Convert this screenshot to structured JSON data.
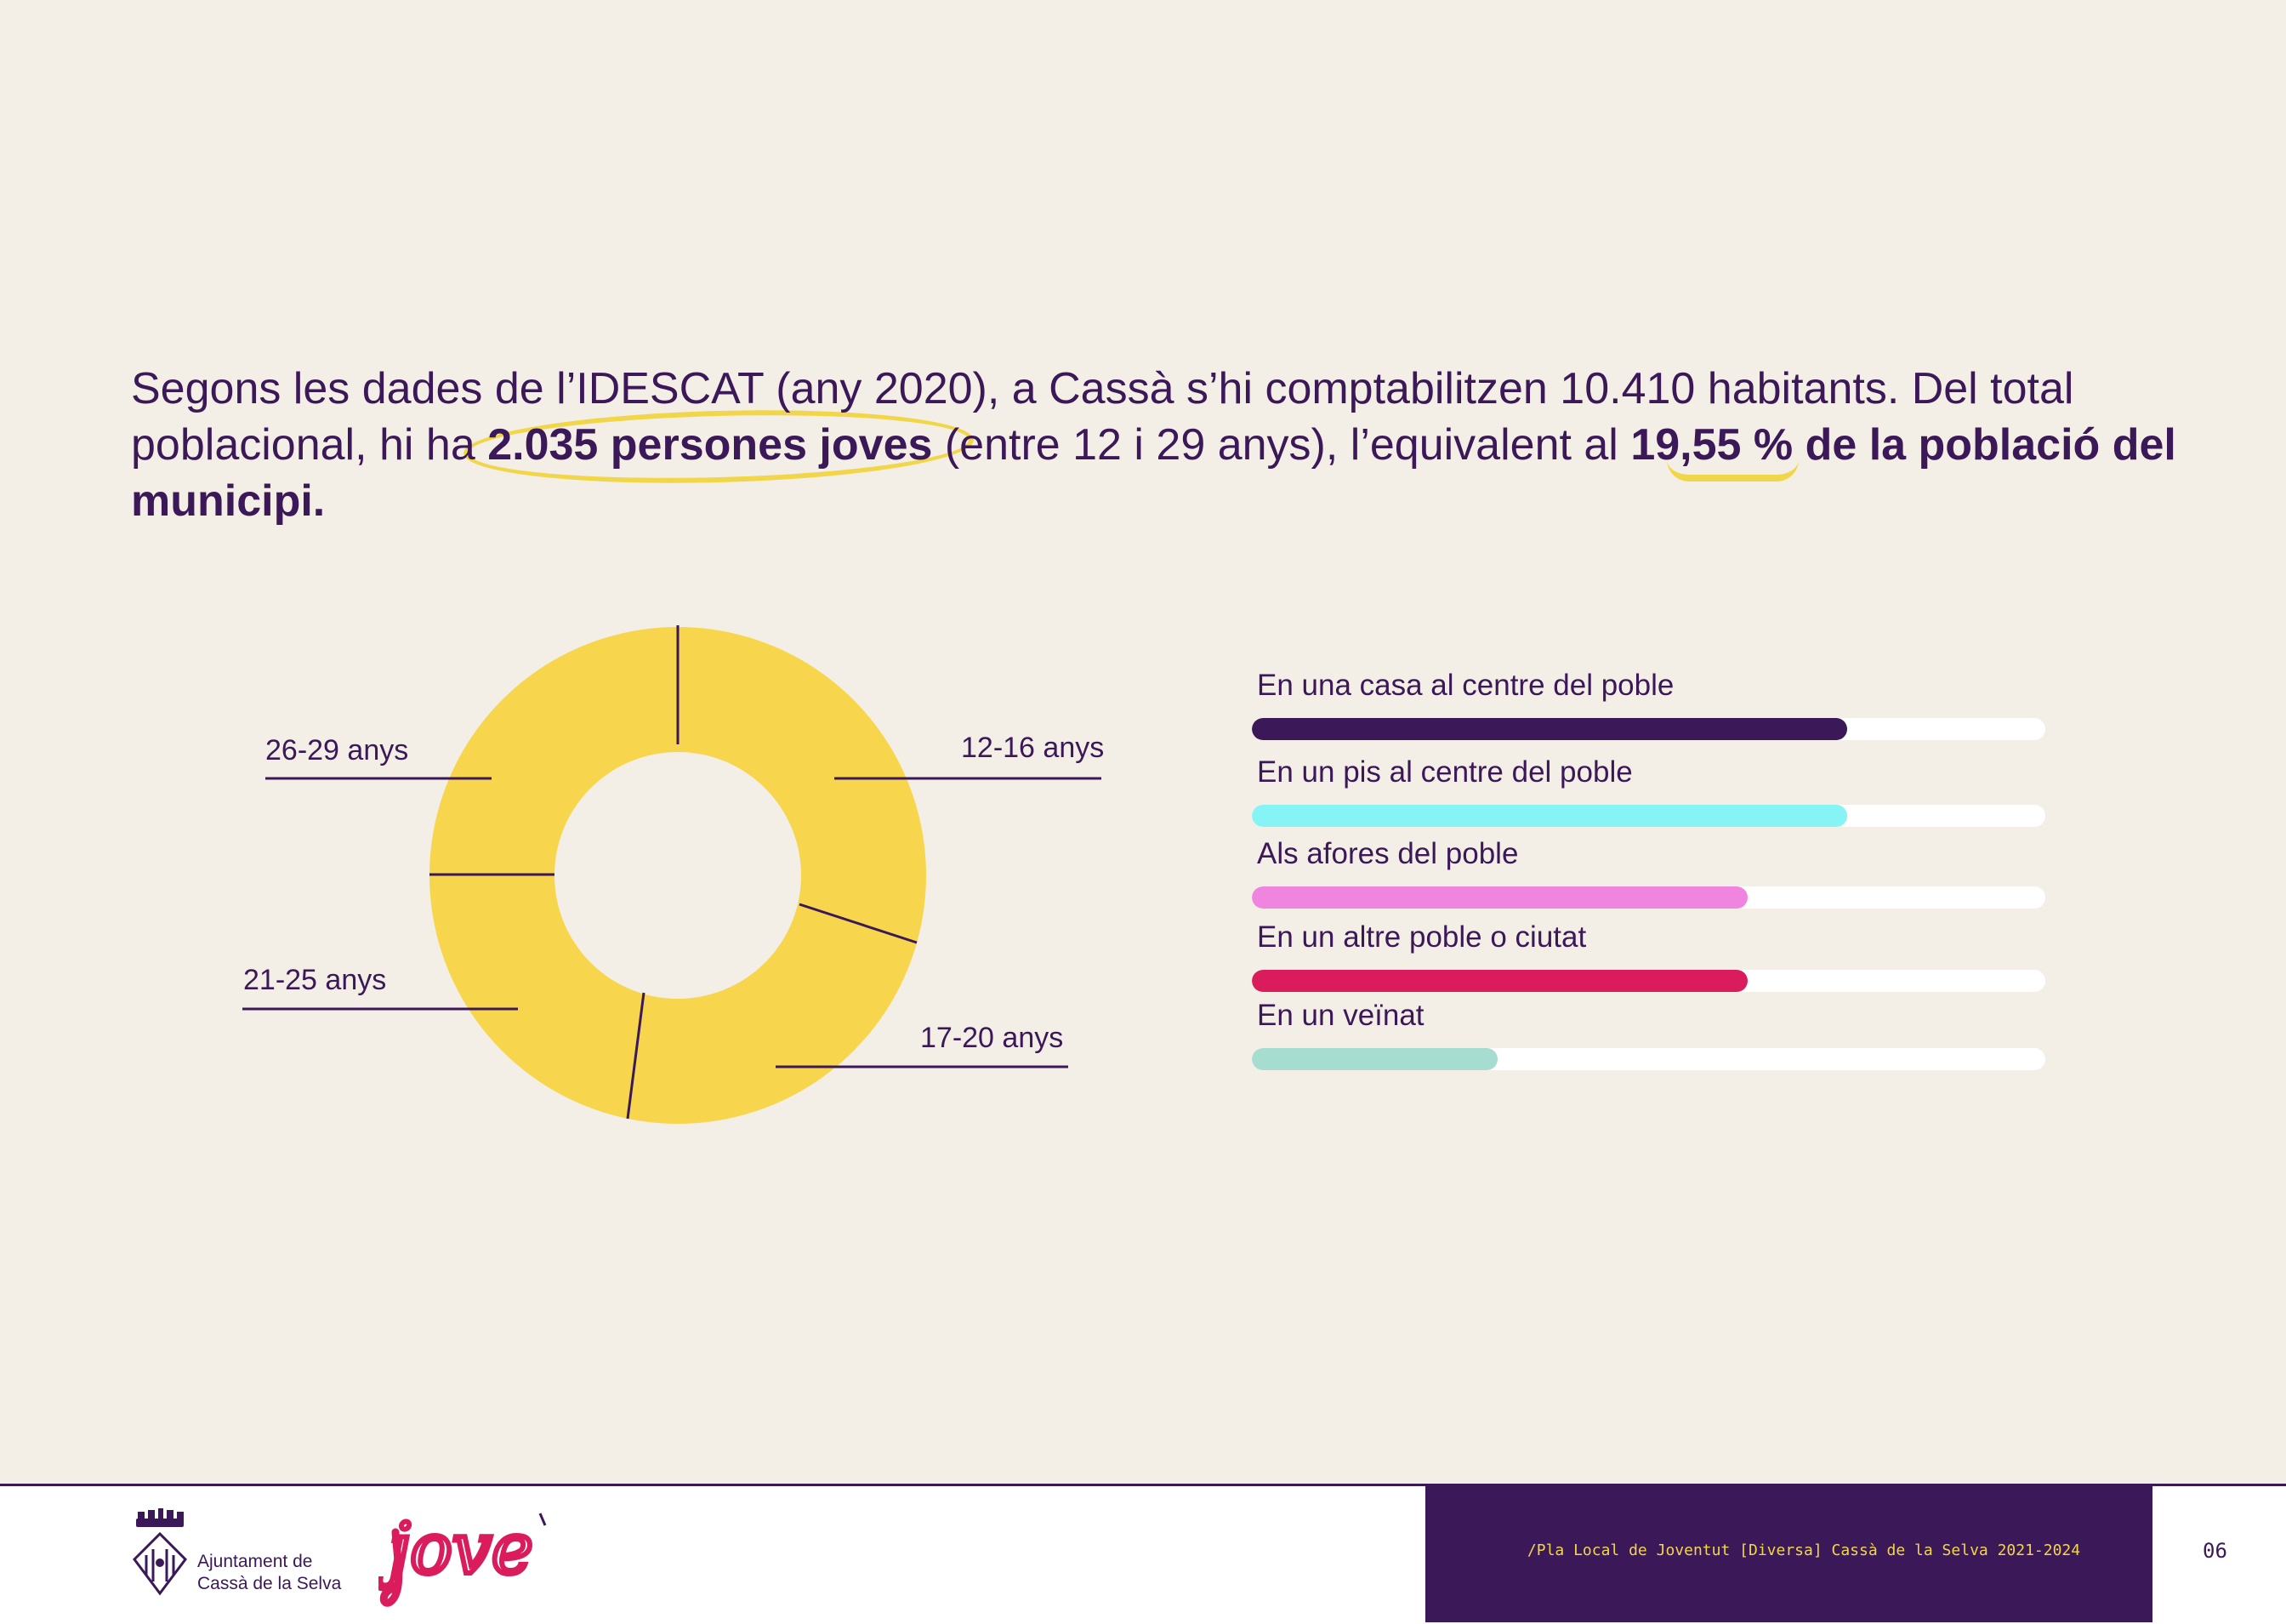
{
  "intro": {
    "part1": "Segons les dades de l’IDESCAT (any 2020), a Cassà s’hi comptabilitzen 10.410 habitants. Del total poblacional, hi ha ",
    "highlight1": "2.035 persones joves",
    "part2": " (entre 12 i 29 anys), l’equivalent al ",
    "highlight2": "19,55 % de la població del municipi."
  },
  "donut": {
    "color": "#f7d64d",
    "labels": {
      "a": "12-16 anys",
      "b": "17-20 anys",
      "c": "21-25 anys",
      "d": "26-29 anys"
    }
  },
  "bars": [
    {
      "label": "En una casa al centre del poble",
      "value": 0.75,
      "color": "#3b1857"
    },
    {
      "label": "En un pis al centre del poble",
      "value": 0.75,
      "color": "#86f4f4"
    },
    {
      "label": "Als afores del poble",
      "value": 0.625,
      "color": "#f085e0"
    },
    {
      "label": "En un altre poble o ciutat",
      "value": 0.625,
      "color": "#db1c5c"
    },
    {
      "label": "En un veïnat",
      "value": 0.31,
      "color": "#a7dcd0"
    }
  ],
  "footer": {
    "org_line1": "Ajuntament de",
    "org_line2": "Cassà de la Selva",
    "logo_text": "jove",
    "caption": "/Pla Local de Joventut [Diversa] Cassà de la Selva 2021-2024",
    "page_number": "06",
    "band_color": "#3b1857",
    "caption_color": "#f2d64a",
    "logo_color": "#db1c5c"
  }
}
